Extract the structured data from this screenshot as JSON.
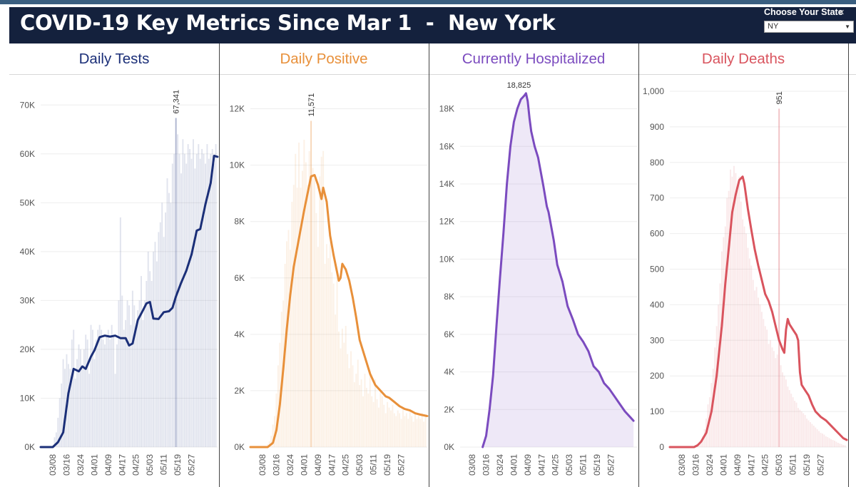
{
  "header": {
    "title": "COVID-19 Key Metrics Since Mar 1  -  New York",
    "state_label": "Choose Your State",
    "state_value": "NY"
  },
  "colors": {
    "header_bg": "#14213d",
    "tests": "#1b2f78",
    "positive": "#e8903a",
    "hospitalized": "#7b4bbf",
    "deaths": "#d9545e"
  },
  "icons": {
    "dropdown": "chevron-down-icon",
    "close": "close-icon"
  },
  "chart_data": [
    {
      "type": "bar",
      "title": "Daily Tests",
      "note": "Bars show daily values; line shows 7-day average",
      "x_tick_labels": [
        "03/08",
        "03/16",
        "03/24",
        "04/01",
        "04/09",
        "04/17",
        "04/25",
        "05/03",
        "05/11",
        "05/19",
        "05/27"
      ],
      "y_tick_labels": [
        "0K",
        "10K",
        "20K",
        "30K",
        "40K",
        "50K",
        "60K",
        "70K"
      ],
      "ylim": [
        0,
        75000
      ],
      "peak_label": "67,341",
      "peak_value": 67341,
      "line_points": [
        [
          0,
          0
        ],
        [
          7,
          0
        ],
        [
          10,
          1000
        ],
        [
          13,
          3000
        ],
        [
          16,
          11000
        ],
        [
          19,
          16000
        ],
        [
          22,
          15500
        ],
        [
          24,
          16500
        ],
        [
          26,
          16000
        ],
        [
          29,
          18500
        ],
        [
          31,
          19800
        ],
        [
          34,
          22500
        ],
        [
          37,
          22800
        ],
        [
          40,
          22600
        ],
        [
          43,
          22800
        ],
        [
          46,
          22300
        ],
        [
          49,
          22300
        ],
        [
          51,
          20800
        ],
        [
          53,
          21200
        ],
        [
          56,
          26000
        ],
        [
          59,
          28000
        ],
        [
          61,
          29400
        ],
        [
          63,
          29700
        ],
        [
          65,
          26300
        ],
        [
          68,
          26200
        ],
        [
          71,
          27600
        ],
        [
          74,
          27800
        ],
        [
          76,
          28500
        ],
        [
          78,
          30800
        ],
        [
          81,
          33600
        ],
        [
          84,
          36100
        ],
        [
          87,
          39400
        ],
        [
          90,
          44300
        ],
        [
          92,
          44600
        ],
        [
          95,
          49700
        ],
        [
          98,
          54000
        ],
        [
          100,
          59600
        ],
        [
          102,
          59400
        ]
      ],
      "bar_values": [
        0,
        0,
        0,
        0,
        0,
        0,
        0,
        0,
        2000,
        3000,
        6000,
        10000,
        13000,
        18000,
        16000,
        19000,
        17000,
        16000,
        22000,
        24000,
        14000,
        18000,
        21000,
        20000,
        16000,
        20000,
        23000,
        22000,
        15000,
        25000,
        24000,
        18000,
        22000,
        24000,
        25000,
        24000,
        22000,
        21000,
        23000,
        24000,
        22000,
        25000,
        23000,
        15000,
        21000,
        30000,
        47000,
        31000,
        24000,
        26000,
        30000,
        29000,
        25000,
        32000,
        29000,
        24000,
        28000,
        30000,
        35000,
        26000,
        30000,
        34000,
        40000,
        36000,
        34000,
        40000,
        42000,
        38000,
        44000,
        46000,
        50000,
        43000,
        48000,
        55000,
        52000,
        50000,
        58000,
        60000,
        67341,
        64000,
        60000,
        56000,
        63000,
        60000,
        58000,
        62000,
        61000,
        59000,
        63000,
        57000,
        60000,
        62000,
        59000,
        61000,
        60000,
        58000,
        62000,
        59000,
        60000,
        61000,
        58000,
        62000
      ]
    },
    {
      "type": "bar",
      "title": "Daily Positive",
      "note": "Bars show daily values; line shows 7-day average",
      "x_tick_labels": [
        "03/08",
        "03/16",
        "03/24",
        "04/01",
        "04/09",
        "04/17",
        "04/25",
        "05/03",
        "05/11",
        "05/19",
        "05/27"
      ],
      "y_tick_labels": [
        "0K",
        "2K",
        "4K",
        "6K",
        "8K",
        "10K",
        "12K"
      ],
      "ylim": [
        0,
        13000
      ],
      "peak_label": "11,571",
      "peak_value": 11571,
      "line_points": [
        [
          0,
          0
        ],
        [
          10,
          0
        ],
        [
          13,
          150
        ],
        [
          15,
          600
        ],
        [
          17,
          1500
        ],
        [
          19,
          2800
        ],
        [
          21,
          4200
        ],
        [
          23,
          5400
        ],
        [
          25,
          6400
        ],
        [
          28,
          7400
        ],
        [
          31,
          8400
        ],
        [
          33,
          9000
        ],
        [
          35,
          9600
        ],
        [
          37,
          9650
        ],
        [
          39,
          9300
        ],
        [
          41,
          8800
        ],
        [
          42,
          9200
        ],
        [
          44,
          8700
        ],
        [
          46,
          7500
        ],
        [
          48,
          6800
        ],
        [
          50,
          6200
        ],
        [
          51,
          5900
        ],
        [
          52,
          6000
        ],
        [
          53,
          6500
        ],
        [
          55,
          6300
        ],
        [
          57,
          5900
        ],
        [
          59,
          5300
        ],
        [
          61,
          4600
        ],
        [
          63,
          3800
        ],
        [
          66,
          3200
        ],
        [
          69,
          2600
        ],
        [
          72,
          2200
        ],
        [
          75,
          2000
        ],
        [
          78,
          1800
        ],
        [
          80,
          1750
        ],
        [
          83,
          1600
        ],
        [
          86,
          1450
        ],
        [
          89,
          1350
        ],
        [
          92,
          1300
        ],
        [
          95,
          1200
        ],
        [
          98,
          1150
        ],
        [
          102,
          1100
        ]
      ],
      "bar_values": [
        0,
        0,
        0,
        0,
        0,
        0,
        0,
        0,
        0,
        0,
        100,
        200,
        400,
        800,
        1100,
        1900,
        2900,
        3700,
        4800,
        5200,
        6500,
        7300,
        7700,
        7000,
        8700,
        9300,
        10400,
        9200,
        10800,
        9200,
        9800,
        10900,
        10100,
        9300,
        10500,
        11571,
        9900,
        9500,
        8300,
        7100,
        9600,
        10300,
        10500,
        6500,
        7200,
        6700,
        7300,
        6200,
        5800,
        4700,
        6000,
        4100,
        3500,
        4200,
        3700,
        4300,
        3300,
        2800,
        3400,
        2900,
        2300,
        2600,
        3100,
        2200,
        2400,
        1800,
        2600,
        2100,
        1900,
        2700,
        1800,
        1600,
        2400,
        1700,
        1400,
        2000,
        1800,
        1500,
        1200,
        1600,
        1400,
        1300,
        1500,
        1200,
        1100,
        1300,
        1200,
        1000,
        1400,
        1100,
        1200,
        1000,
        1300,
        1100,
        900,
        1200,
        1000,
        1100,
        1000,
        1200,
        900,
        1100
      ]
    },
    {
      "type": "area",
      "title": "Currently Hospitalized",
      "x_tick_labels": [
        "03/08",
        "03/16",
        "03/24",
        "04/01",
        "04/09",
        "04/17",
        "04/25",
        "05/03",
        "05/11",
        "05/19",
        "05/27"
      ],
      "y_tick_labels": [
        "0K",
        "2K",
        "4K",
        "6K",
        "8K",
        "10K",
        "12K",
        "14K",
        "16K",
        "18K"
      ],
      "ylim": [
        0,
        19500
      ],
      "peak_label": "18,825",
      "peak_value": 18825,
      "line_points": [
        [
          13,
          0
        ],
        [
          15,
          600
        ],
        [
          17,
          2000
        ],
        [
          19,
          3800
        ],
        [
          21,
          6500
        ],
        [
          23,
          9000
        ],
        [
          25,
          11400
        ],
        [
          27,
          14000
        ],
        [
          29,
          16000
        ],
        [
          31,
          17300
        ],
        [
          33,
          18000
        ],
        [
          35,
          18500
        ],
        [
          37,
          18700
        ],
        [
          38,
          18825
        ],
        [
          39,
          18400
        ],
        [
          40,
          17500
        ],
        [
          41,
          16800
        ],
        [
          43,
          16000
        ],
        [
          45,
          15400
        ],
        [
          48,
          13900
        ],
        [
          50,
          12800
        ],
        [
          51,
          12500
        ],
        [
          54,
          11000
        ],
        [
          56,
          9700
        ],
        [
          59,
          8800
        ],
        [
          62,
          7500
        ],
        [
          65,
          6800
        ],
        [
          68,
          6000
        ],
        [
          71,
          5600
        ],
        [
          74,
          5100
        ],
        [
          77,
          4300
        ],
        [
          80,
          4000
        ],
        [
          83,
          3400
        ],
        [
          86,
          3100
        ],
        [
          89,
          2700
        ],
        [
          92,
          2300
        ],
        [
          95,
          1900
        ],
        [
          98,
          1600
        ],
        [
          100,
          1400
        ]
      ]
    },
    {
      "type": "bar",
      "title": "Daily Deaths",
      "note": "Bars show daily values; line shows 7-day average",
      "x_tick_labels": [
        "03/08",
        "03/16",
        "03/24",
        "04/01",
        "04/09",
        "04/17",
        "04/25",
        "05/03",
        "05/11",
        "05/19",
        "05/27"
      ],
      "y_tick_labels": [
        "0",
        "100",
        "200",
        "300",
        "400",
        "500",
        "600",
        "700",
        "800",
        "900",
        "1,000"
      ],
      "ylim": [
        0,
        1030
      ],
      "peak_label": "951",
      "peak_value": 951,
      "line_points": [
        [
          0,
          0
        ],
        [
          14,
          0
        ],
        [
          16,
          5
        ],
        [
          18,
          15
        ],
        [
          21,
          40
        ],
        [
          24,
          100
        ],
        [
          27,
          200
        ],
        [
          30,
          340
        ],
        [
          32,
          460
        ],
        [
          34,
          560
        ],
        [
          36,
          660
        ],
        [
          38,
          710
        ],
        [
          40,
          750
        ],
        [
          42,
          760
        ],
        [
          43,
          740
        ],
        [
          45,
          670
        ],
        [
          47,
          610
        ],
        [
          49,
          555
        ],
        [
          51,
          510
        ],
        [
          53,
          470
        ],
        [
          55,
          430
        ],
        [
          57,
          410
        ],
        [
          59,
          380
        ],
        [
          61,
          340
        ],
        [
          63,
          300
        ],
        [
          65,
          275
        ],
        [
          66,
          265
        ],
        [
          67,
          330
        ],
        [
          68,
          360
        ],
        [
          69,
          345
        ],
        [
          71,
          330
        ],
        [
          73,
          315
        ],
        [
          74,
          300
        ],
        [
          75,
          210
        ],
        [
          76,
          175
        ],
        [
          78,
          160
        ],
        [
          80,
          145
        ],
        [
          82,
          120
        ],
        [
          84,
          100
        ],
        [
          87,
          85
        ],
        [
          90,
          75
        ],
        [
          93,
          60
        ],
        [
          97,
          40
        ],
        [
          100,
          25
        ],
        [
          102,
          20
        ]
      ],
      "bar_values": [
        0,
        0,
        0,
        0,
        0,
        0,
        0,
        0,
        0,
        0,
        0,
        0,
        0,
        0,
        2,
        5,
        8,
        12,
        20,
        30,
        50,
        80,
        120,
        140,
        180,
        220,
        280,
        340,
        400,
        460,
        550,
        590,
        620,
        700,
        720,
        780,
        760,
        790,
        770,
        720,
        760,
        690,
        640,
        620,
        600,
        560,
        530,
        510,
        470,
        440,
        450,
        420,
        400,
        380,
        360,
        340,
        330,
        290,
        300,
        280,
        270,
        250,
        260,
        951,
        230,
        210,
        200,
        190,
        170,
        160,
        150,
        140,
        130,
        125,
        110,
        105,
        100,
        95,
        90,
        80,
        75,
        70,
        65,
        60,
        55,
        50,
        45,
        40,
        38,
        35,
        30,
        28,
        25,
        22,
        20,
        18,
        15,
        12,
        10,
        8,
        6,
        5
      ]
    }
  ]
}
